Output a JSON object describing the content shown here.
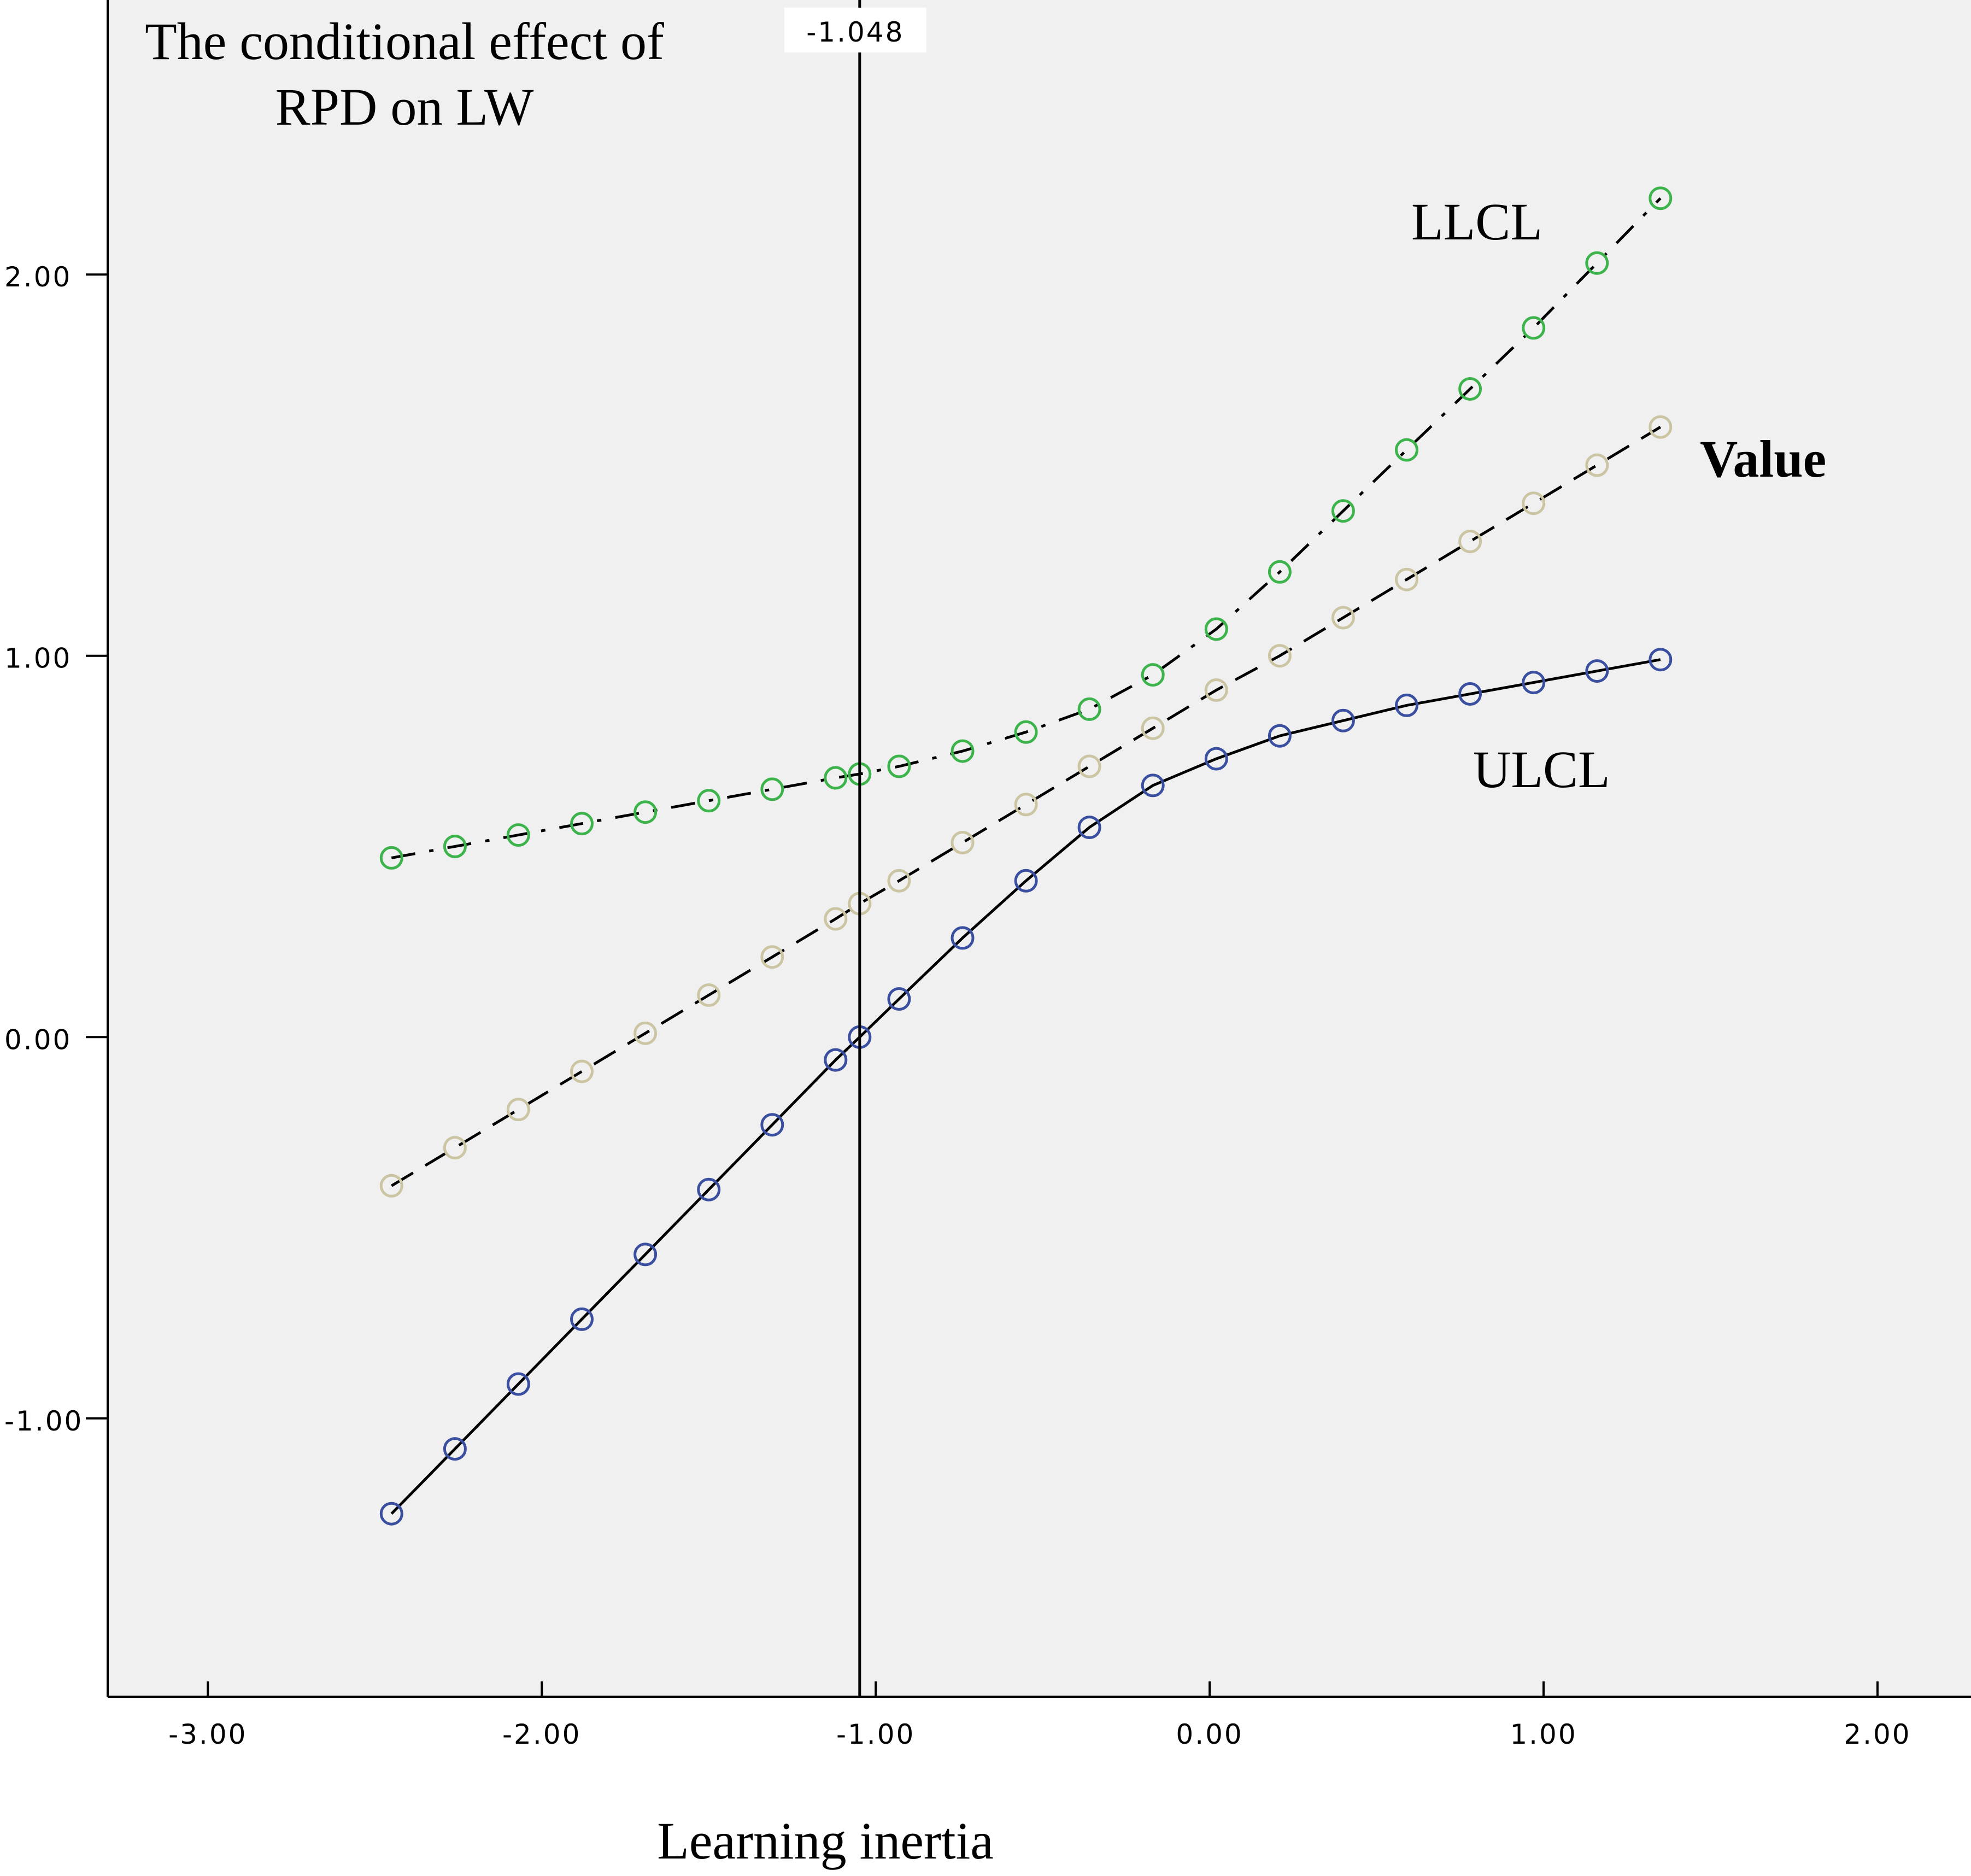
{
  "chart_data": {
    "type": "line",
    "title": "The conditional effect of RPD on LW",
    "title_lines": [
      "The conditional effect of",
      "RPD on LW"
    ],
    "xlabel": "Learning inertia",
    "ylabel": "",
    "xlim": [
      -3.3,
      2.28
    ],
    "ylim": [
      -1.73,
      2.72
    ],
    "x_ticks": [
      -3.0,
      -2.0,
      -1.0,
      0.0,
      1.0,
      2.0
    ],
    "x_tick_labels": [
      "-3.00",
      "-2.00",
      "-1.00",
      "0.00",
      "1.00",
      "2.00"
    ],
    "y_ticks": [
      -1.0,
      0.0,
      1.0,
      2.0
    ],
    "y_tick_labels": [
      "-1.00",
      "0.00",
      "1.00",
      "2.00"
    ],
    "reference_line": {
      "x": -1.048,
      "label": "-1.048"
    },
    "x": [
      -2.45,
      -2.26,
      -2.07,
      -1.88,
      -1.69,
      -1.5,
      -1.31,
      -1.12,
      -1.048,
      -0.93,
      -0.74,
      -0.55,
      -0.36,
      -0.17,
      0.02,
      0.21,
      0.4,
      0.59,
      0.78,
      0.97,
      1.16,
      1.35
    ],
    "series": [
      {
        "name": "LLCL",
        "marker_color": "#3cb44b",
        "line_style": "dash-dot",
        "values": [
          0.47,
          0.5,
          0.53,
          0.56,
          0.59,
          0.62,
          0.65,
          0.68,
          0.69,
          0.71,
          0.75,
          0.8,
          0.86,
          0.95,
          1.07,
          1.22,
          1.38,
          1.54,
          1.7,
          1.86,
          2.03,
          2.2
        ]
      },
      {
        "name": "Value",
        "marker_color": "#ccc5a3",
        "line_style": "dashed",
        "values": [
          -0.39,
          -0.29,
          -0.19,
          -0.09,
          0.01,
          0.11,
          0.21,
          0.31,
          0.35,
          0.41,
          0.51,
          0.61,
          0.71,
          0.81,
          0.91,
          1.0,
          1.1,
          1.2,
          1.3,
          1.4,
          1.5,
          1.6
        ]
      },
      {
        "name": "ULCL",
        "marker_color": "#3a4fa0",
        "line_style": "solid",
        "values": [
          -1.25,
          -1.08,
          -0.91,
          -0.74,
          -0.57,
          -0.4,
          -0.23,
          -0.06,
          0.0,
          0.1,
          0.26,
          0.41,
          0.55,
          0.66,
          0.73,
          0.79,
          0.83,
          0.87,
          0.9,
          0.93,
          0.96,
          0.99
        ]
      }
    ],
    "series_labels": [
      {
        "name": "LLCL",
        "text": "LLCL"
      },
      {
        "name": "Value",
        "text": "Value"
      },
      {
        "name": "ULCL",
        "text": "ULCL"
      }
    ]
  }
}
